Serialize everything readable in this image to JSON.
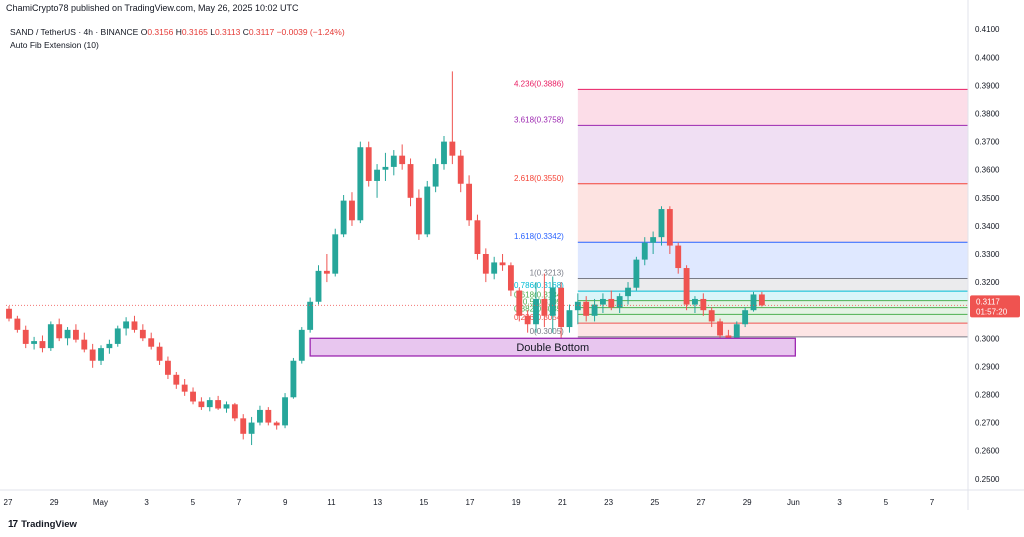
{
  "header": {
    "publisher": "ChamiCrypto78 published on TradingView.com, May 26, 2025 10:02 UTC",
    "symbol": "SAND / TetherUS · 4h · BINANCE",
    "ohlc": [
      {
        "label": "O",
        "value": "0.3156"
      },
      {
        "label": "H",
        "value": "0.3165"
      },
      {
        "label": "L",
        "value": "0.3113"
      },
      {
        "label": "C",
        "value": "0.3117"
      }
    ],
    "change": "−0.0039 (−1.24%)",
    "indicator": "Auto Fib Extension (10)"
  },
  "logo": {
    "mark": "17",
    "text": "TradingView"
  },
  "colors": {
    "up": "#26a69a",
    "down": "#ef5350",
    "last_price_bg": "#ef5350",
    "zone_border": "#9c27b0",
    "zone_fill": "#e8c6ef"
  },
  "chart_data": {
    "type": "candlestick",
    "y_axis_ticks": [
      "0.4100",
      "0.4000",
      "0.3900",
      "0.3800",
      "0.3700",
      "0.3600",
      "0.3500",
      "0.3400",
      "0.3300",
      "0.3200",
      "0.3100",
      "0.3000",
      "0.2900",
      "0.2800",
      "0.2700",
      "0.2600",
      "0.2500"
    ],
    "ylim": [
      0.246,
      0.414
    ],
    "x_axis_ticks": [
      "27",
      "29",
      "May",
      "3",
      "5",
      "7",
      "9",
      "11",
      "13",
      "15",
      "17",
      "19",
      "21",
      "23",
      "25",
      "27",
      "29",
      "Jun",
      "3",
      "5",
      "7"
    ],
    "xlim": [
      0,
      115
    ],
    "x_tick_positions": [
      0,
      6,
      12,
      18,
      24,
      30,
      36,
      42,
      48,
      54,
      60,
      66,
      72,
      78,
      84,
      90,
      96,
      102,
      108,
      114,
      120
    ],
    "last_price": {
      "value": "0.3117",
      "countdown": "01:57:20"
    },
    "fib_levels": [
      {
        "label": "4.236(0.3886)",
        "value": 0.3886,
        "color": "#e91e63"
      },
      {
        "label": "3.618(0.3758)",
        "value": 0.3758,
        "color": "#9c27b0"
      },
      {
        "label": "2.618(0.3550)",
        "value": 0.355,
        "color": "#f44336"
      },
      {
        "label": "1.618(0.3342)",
        "value": 0.3342,
        "color": "#2962ff"
      },
      {
        "label": "1(0.3213)",
        "value": 0.3213,
        "color": "#787b86"
      },
      {
        "label": "0.786(0.3168)",
        "value": 0.3168,
        "color": "#00bcd4"
      },
      {
        "label": "0.618(0.3134)",
        "value": 0.3134,
        "color": "#4caf50"
      },
      {
        "label": "0.5(0.3109)",
        "value": 0.3109,
        "color": "#4caf50"
      },
      {
        "label": "0.382(0.3085)",
        "value": 0.3085,
        "color": "#4caf50"
      },
      {
        "label": "0.236(0.3054)",
        "value": 0.3054,
        "color": "#ef5350"
      },
      {
        "label": "0(0.3005)",
        "value": 0.3005,
        "color": "#787b86"
      }
    ],
    "fib_x_start": 68,
    "fib_x_end": 121,
    "annotation": {
      "text": "Double Bottom",
      "x_start": 36,
      "x_end": 94,
      "y_top": 0.3,
      "y_bottom": 0.2937
    },
    "candles": [
      [
        0,
        0.3105,
        0.3115,
        0.306,
        0.307
      ],
      [
        1,
        0.307,
        0.308,
        0.302,
        0.303
      ],
      [
        2,
        0.303,
        0.3045,
        0.2965,
        0.298
      ],
      [
        3,
        0.298,
        0.3005,
        0.296,
        0.299
      ],
      [
        4,
        0.299,
        0.301,
        0.295,
        0.2965
      ],
      [
        5,
        0.2965,
        0.306,
        0.2955,
        0.305
      ],
      [
        6,
        0.305,
        0.307,
        0.299,
        0.3
      ],
      [
        7,
        0.3,
        0.304,
        0.2975,
        0.303
      ],
      [
        8,
        0.303,
        0.305,
        0.2985,
        0.2995
      ],
      [
        9,
        0.2995,
        0.302,
        0.295,
        0.296
      ],
      [
        10,
        0.296,
        0.298,
        0.2895,
        0.292
      ],
      [
        11,
        0.292,
        0.2975,
        0.2905,
        0.2965
      ],
      [
        12,
        0.2965,
        0.2995,
        0.2945,
        0.298
      ],
      [
        13,
        0.298,
        0.3045,
        0.297,
        0.3035
      ],
      [
        14,
        0.3035,
        0.3075,
        0.301,
        0.306
      ],
      [
        15,
        0.306,
        0.308,
        0.302,
        0.303
      ],
      [
        16,
        0.303,
        0.305,
        0.299,
        0.3
      ],
      [
        17,
        0.3,
        0.302,
        0.296,
        0.297
      ],
      [
        18,
        0.297,
        0.2985,
        0.2905,
        0.292
      ],
      [
        19,
        0.292,
        0.2935,
        0.2855,
        0.287
      ],
      [
        20,
        0.287,
        0.288,
        0.282,
        0.2835
      ],
      [
        21,
        0.2835,
        0.2855,
        0.2795,
        0.281
      ],
      [
        22,
        0.281,
        0.2825,
        0.2765,
        0.2775
      ],
      [
        23,
        0.2775,
        0.279,
        0.2745,
        0.2755
      ],
      [
        24,
        0.2755,
        0.279,
        0.274,
        0.278
      ],
      [
        25,
        0.278,
        0.2795,
        0.2745,
        0.275
      ],
      [
        26,
        0.275,
        0.2775,
        0.2735,
        0.2765
      ],
      [
        27,
        0.2765,
        0.277,
        0.2705,
        0.2715
      ],
      [
        28,
        0.2715,
        0.273,
        0.264,
        0.266
      ],
      [
        29,
        0.266,
        0.272,
        0.262,
        0.27
      ],
      [
        30,
        0.27,
        0.276,
        0.269,
        0.2745
      ],
      [
        31,
        0.2745,
        0.2755,
        0.269,
        0.27
      ],
      [
        32,
        0.27,
        0.2705,
        0.2675,
        0.269
      ],
      [
        33,
        0.269,
        0.2805,
        0.268,
        0.279
      ],
      [
        34,
        0.279,
        0.293,
        0.2785,
        0.292
      ],
      [
        35,
        0.292,
        0.304,
        0.291,
        0.303
      ],
      [
        36,
        0.303,
        0.3145,
        0.302,
        0.313
      ],
      [
        37,
        0.313,
        0.326,
        0.312,
        0.324
      ],
      [
        38,
        0.324,
        0.33,
        0.32,
        0.323
      ],
      [
        39,
        0.323,
        0.339,
        0.322,
        0.337
      ],
      [
        40,
        0.337,
        0.351,
        0.336,
        0.349
      ],
      [
        41,
        0.349,
        0.352,
        0.34,
        0.342
      ],
      [
        42,
        0.342,
        0.37,
        0.341,
        0.368
      ],
      [
        43,
        0.368,
        0.37,
        0.354,
        0.356
      ],
      [
        44,
        0.356,
        0.362,
        0.35,
        0.36
      ],
      [
        45,
        0.36,
        0.366,
        0.356,
        0.361
      ],
      [
        46,
        0.361,
        0.367,
        0.358,
        0.365
      ],
      [
        47,
        0.365,
        0.369,
        0.36,
        0.362
      ],
      [
        48,
        0.362,
        0.364,
        0.347,
        0.35
      ],
      [
        49,
        0.35,
        0.353,
        0.335,
        0.337
      ],
      [
        50,
        0.337,
        0.356,
        0.336,
        0.354
      ],
      [
        51,
        0.354,
        0.364,
        0.352,
        0.362
      ],
      [
        52,
        0.362,
        0.372,
        0.36,
        0.37
      ],
      [
        53,
        0.37,
        0.395,
        0.362,
        0.365
      ],
      [
        54,
        0.365,
        0.367,
        0.352,
        0.355
      ],
      [
        55,
        0.355,
        0.358,
        0.34,
        0.342
      ],
      [
        56,
        0.342,
        0.344,
        0.328,
        0.33
      ],
      [
        57,
        0.33,
        0.332,
        0.32,
        0.323
      ],
      [
        58,
        0.323,
        0.329,
        0.321,
        0.327
      ],
      [
        59,
        0.327,
        0.33,
        0.324,
        0.326
      ],
      [
        60,
        0.326,
        0.327,
        0.315,
        0.317
      ],
      [
        61,
        0.317,
        0.318,
        0.306,
        0.308
      ],
      [
        62,
        0.308,
        0.31,
        0.302,
        0.305
      ],
      [
        63,
        0.305,
        0.32,
        0.302,
        0.314
      ],
      [
        64,
        0.314,
        0.323,
        0.304,
        0.308
      ],
      [
        65,
        0.308,
        0.322,
        0.302,
        0.318
      ],
      [
        66,
        0.318,
        0.32,
        0.3,
        0.304
      ],
      [
        67,
        0.304,
        0.312,
        0.302,
        0.31
      ],
      [
        68,
        0.31,
        0.316,
        0.305,
        0.313
      ],
      [
        69,
        0.313,
        0.315,
        0.306,
        0.308
      ],
      [
        70,
        0.308,
        0.314,
        0.306,
        0.312
      ],
      [
        71,
        0.312,
        0.316,
        0.309,
        0.314
      ],
      [
        72,
        0.314,
        0.317,
        0.31,
        0.311
      ],
      [
        73,
        0.311,
        0.316,
        0.309,
        0.315
      ],
      [
        74,
        0.315,
        0.32,
        0.312,
        0.318
      ],
      [
        75,
        0.318,
        0.329,
        0.317,
        0.328
      ],
      [
        76,
        0.328,
        0.336,
        0.326,
        0.334
      ],
      [
        77,
        0.334,
        0.338,
        0.33,
        0.336
      ],
      [
        78,
        0.336,
        0.347,
        0.333,
        0.346
      ],
      [
        79,
        0.346,
        0.347,
        0.33,
        0.333
      ],
      [
        80,
        0.333,
        0.334,
        0.323,
        0.325
      ],
      [
        81,
        0.325,
        0.326,
        0.31,
        0.312
      ],
      [
        82,
        0.312,
        0.315,
        0.309,
        0.314
      ],
      [
        83,
        0.314,
        0.316,
        0.308,
        0.31
      ],
      [
        84,
        0.31,
        0.311,
        0.304,
        0.306
      ],
      [
        85,
        0.306,
        0.307,
        0.3,
        0.301
      ],
      [
        86,
        0.301,
        0.303,
        0.296,
        0.299
      ],
      [
        87,
        0.299,
        0.306,
        0.297,
        0.305
      ],
      [
        88,
        0.305,
        0.311,
        0.304,
        0.31
      ],
      [
        89,
        0.31,
        0.3165,
        0.3095,
        0.3156
      ],
      [
        90,
        0.3156,
        0.3165,
        0.3113,
        0.3117
      ]
    ]
  }
}
